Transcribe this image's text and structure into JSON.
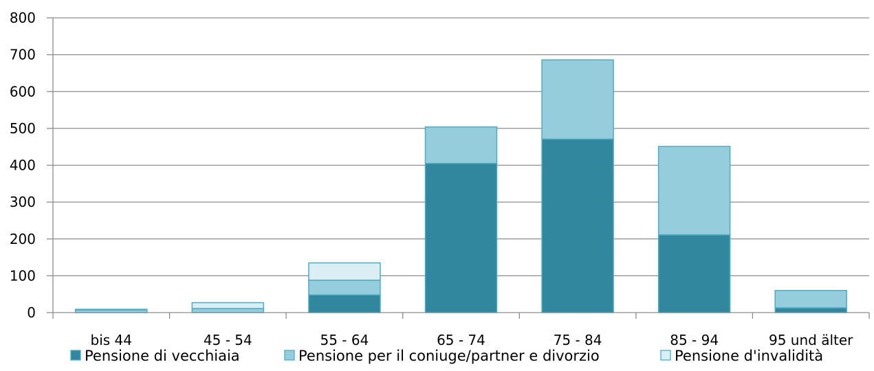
{
  "chart_data": {
    "type": "bar",
    "stacked": true,
    "categories": [
      "bis 44",
      "45 - 54",
      "55 - 64",
      "65 - 74",
      "75 - 84",
      "85 - 94",
      "95 und älter"
    ],
    "series": [
      {
        "name": "Pensione di vecchiaia",
        "values": [
          0,
          0,
          48,
          405,
          471,
          211,
          13
        ],
        "color": "#31889e"
      },
      {
        "name": "Pensione per il coniuge/partner e divorzio",
        "values": [
          7,
          11,
          40,
          99,
          215,
          240,
          47
        ],
        "color": "#96cddc"
      },
      {
        "name": "Pensione d'invalidità",
        "values": [
          2,
          16,
          47,
          0,
          0,
          0,
          0
        ],
        "color": "#daeef3"
      }
    ],
    "yticks": [
      0,
      100,
      200,
      300,
      400,
      500,
      600,
      700,
      800
    ],
    "ylim": [
      0,
      800
    ],
    "grid": true,
    "legend_position": "bottom",
    "title": "",
    "xlabel": "",
    "ylabel": ""
  }
}
